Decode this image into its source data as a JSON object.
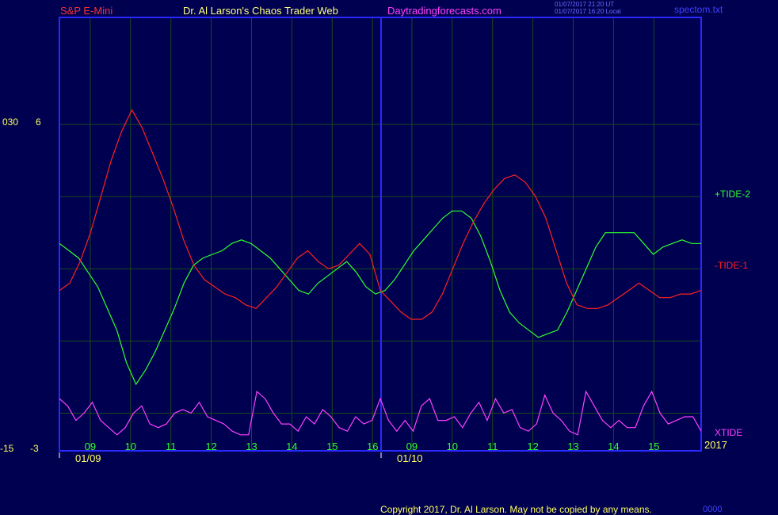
{
  "header": {
    "symbol": "S&P E-Mini",
    "title": "Dr. Al Larson's Chaos Trader Web",
    "site": "Daytradingforecasts.com",
    "stamp_line1": "01/07/2017 21:20 UT",
    "stamp_line2": "01/07/2017 16:20 Local",
    "file": "spectom.txt"
  },
  "yaxis": {
    "top_left": "030",
    "top_right": "6",
    "bottom_left": "-15",
    "bottom_right": "-3"
  },
  "footer": {
    "copyright": "Copyright 2017, Dr. Al Larson. May not be copied by any means.",
    "tag": "0000"
  },
  "colors": {
    "background": "#000050",
    "frame": "#2828ff",
    "grid": "#1a4a1a",
    "tide1": "#ff2020",
    "tide2": "#30ff30",
    "xtide": "#ff40ff",
    "hour_labels": "#30ff30",
    "text": "#ffff60"
  },
  "chart_data": {
    "type": "line",
    "grid": true,
    "ylim": [
      -3,
      6
    ],
    "legend_placement": "right",
    "year_label": "2017",
    "days": [
      {
        "date": "01/09",
        "hours": [
          "09",
          "10",
          "11",
          "12",
          "13",
          "14",
          "15",
          "16"
        ]
      },
      {
        "date": "01/10",
        "hours": [
          "09",
          "10",
          "11",
          "12",
          "13",
          "14",
          "15"
        ]
      }
    ],
    "series": [
      {
        "name": "+TIDE-2",
        "color": "#30ff30",
        "values": [
          2.7,
          2.5,
          2.3,
          1.9,
          1.5,
          0.9,
          0.3,
          -0.6,
          -1.2,
          -0.8,
          -0.3,
          0.3,
          0.9,
          1.6,
          2.1,
          2.3,
          2.4,
          2.5,
          2.7,
          2.8,
          2.7,
          2.5,
          2.3,
          2.0,
          1.7,
          1.4,
          1.3,
          1.6,
          1.8,
          2.0,
          2.2,
          1.9,
          1.5,
          1.3,
          1.4,
          1.7,
          2.1,
          2.5,
          2.8,
          3.1,
          3.4,
          3.6,
          3.6,
          3.4,
          2.9,
          2.2,
          1.4,
          0.8,
          0.5,
          0.3,
          0.1,
          0.2,
          0.3,
          0.8,
          1.4,
          2.0,
          2.6,
          3.0,
          3.0,
          3.0,
          3.0,
          2.7,
          2.4,
          2.6,
          2.7,
          2.8,
          2.7,
          2.7
        ]
      },
      {
        "name": "-TIDE-1",
        "color": "#ff2020",
        "values": [
          1.4,
          1.6,
          2.2,
          3.0,
          4.0,
          5.0,
          5.8,
          6.4,
          5.9,
          5.2,
          4.5,
          3.7,
          2.8,
          2.1,
          1.7,
          1.5,
          1.3,
          1.2,
          1.0,
          0.9,
          1.2,
          1.5,
          1.9,
          2.3,
          2.5,
          2.2,
          2.0,
          2.1,
          2.4,
          2.7,
          2.4,
          1.4,
          1.1,
          0.8,
          0.6,
          0.6,
          0.8,
          1.3,
          2.0,
          2.7,
          3.3,
          3.8,
          4.2,
          4.5,
          4.6,
          4.4,
          4.0,
          3.4,
          2.5,
          1.6,
          1.0,
          0.9,
          0.9,
          1.0,
          1.2,
          1.4,
          1.6,
          1.4,
          1.2,
          1.2,
          1.3,
          1.3,
          1.4
        ]
      },
      {
        "name": "XTIDE",
        "color": "#ff40ff",
        "values": [
          -1.6,
          -1.8,
          -2.2,
          -2.0,
          -1.7,
          -2.2,
          -2.4,
          -2.6,
          -2.4,
          -2.0,
          -1.8,
          -2.3,
          -2.4,
          -2.3,
          -2.0,
          -1.9,
          -2.0,
          -1.7,
          -2.1,
          -2.2,
          -2.3,
          -2.5,
          -2.6,
          -2.6,
          -1.4,
          -1.6,
          -2.0,
          -2.3,
          -2.3,
          -2.5,
          -2.1,
          -2.3,
          -1.9,
          -2.1,
          -2.4,
          -2.5,
          -2.1,
          -2.3,
          -2.2,
          -1.6,
          -2.2,
          -2.5,
          -2.2,
          -2.5,
          -1.8,
          -1.6,
          -2.2,
          -2.2,
          -2.1,
          -2.4,
          -2.0,
          -1.7,
          -2.2,
          -1.6,
          -2.0,
          -1.9,
          -2.4,
          -2.5,
          -2.3,
          -1.5,
          -2.0,
          -2.2,
          -2.5,
          -2.6,
          -1.4,
          -1.8,
          -2.2,
          -2.4,
          -2.2,
          -2.4,
          -2.4,
          -1.8,
          -1.4,
          -2.0,
          -2.3,
          -2.2,
          -2.1,
          -2.1,
          -2.5
        ]
      }
    ]
  }
}
